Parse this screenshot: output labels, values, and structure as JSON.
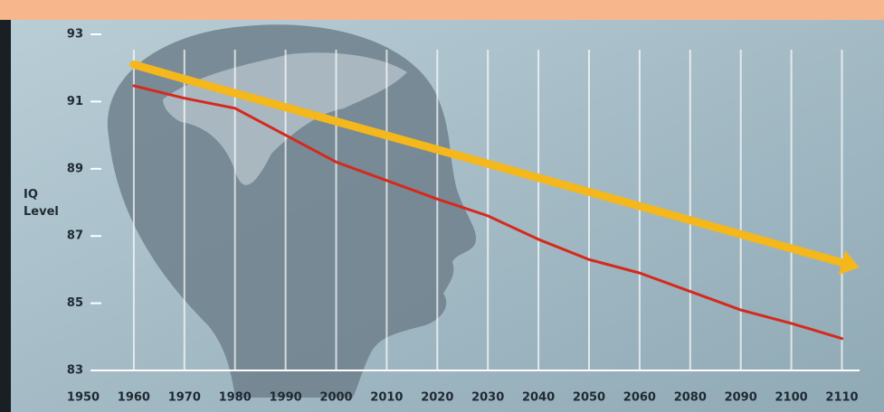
{
  "chart_data": {
    "type": "line",
    "y_label": "IQ Level",
    "categories": [
      "1950",
      "1960",
      "1970",
      "1980",
      "1990",
      "2000",
      "2010",
      "2020",
      "2030",
      "2040",
      "2050",
      "2060",
      "2080",
      "2090",
      "2100",
      "2110"
    ],
    "series": [
      {
        "color": "#d42a1e",
        "values": [
          null,
          91.47,
          91.1,
          90.8,
          90.0,
          89.2,
          88.65,
          88.1,
          87.6,
          86.9,
          86.3,
          85.9,
          85.35,
          84.8,
          84.4,
          83.95
        ]
      },
      {
        "color": "#f4b71c",
        "values": [
          null,
          92.1,
          91.67,
          91.25,
          90.83,
          90.41,
          89.99,
          89.57,
          89.15,
          88.73,
          88.31,
          87.89,
          87.47,
          87.05,
          86.63,
          86.21
        ]
      }
    ],
    "ylim": [
      83,
      93
    ],
    "yticks": [
      83,
      85,
      87,
      89,
      91,
      93
    ],
    "grid": true
  }
}
